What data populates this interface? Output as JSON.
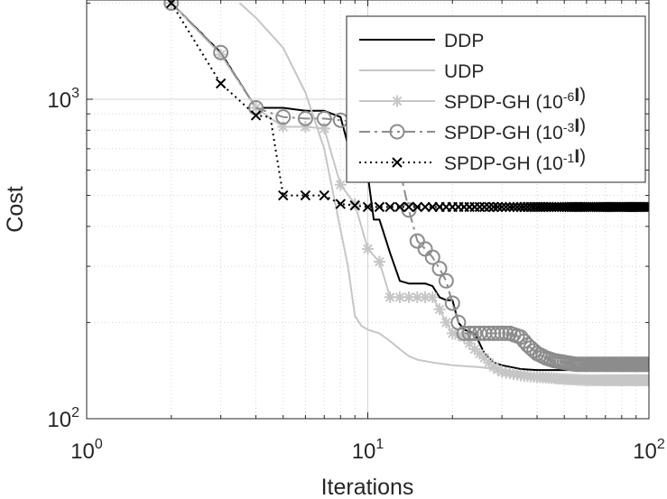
{
  "chart_data": {
    "type": "line",
    "title": "",
    "xlabel": "Iterations",
    "ylabel": "Cost",
    "xscale": "log",
    "yscale": "log",
    "xlim": [
      1,
      100
    ],
    "ylim": [
      100,
      2000
    ],
    "x_ticks": [
      {
        "value": 1,
        "base": "10",
        "exp": "0"
      },
      {
        "value": 10,
        "base": "10",
        "exp": "1"
      },
      {
        "value": 100,
        "base": "10",
        "exp": "2"
      }
    ],
    "y_ticks": [
      {
        "value": 100,
        "base": "10",
        "exp": "2"
      },
      {
        "value": 1000,
        "base": "10",
        "exp": "3"
      }
    ],
    "grid": true,
    "legend_position": "top-right",
    "series": [
      {
        "name": "DDP",
        "legend_parts": [
          {
            "t": "DDP"
          }
        ],
        "color": "#000000",
        "dash": "",
        "marker": "none",
        "points": [
          [
            2,
            2000
          ],
          [
            3,
            1400
          ],
          [
            4,
            940
          ],
          [
            5,
            940
          ],
          [
            6,
            920
          ],
          [
            7,
            920
          ],
          [
            8,
            880
          ],
          [
            8.4,
            750
          ],
          [
            8.8,
            600
          ],
          [
            9.3,
            580
          ],
          [
            10,
            580
          ],
          [
            10.5,
            420
          ],
          [
            11,
            420
          ],
          [
            12,
            330
          ],
          [
            13,
            270
          ],
          [
            14,
            265
          ],
          [
            15,
            265
          ],
          [
            16,
            265
          ],
          [
            17,
            260
          ],
          [
            18,
            240
          ],
          [
            19,
            235
          ],
          [
            20,
            235
          ],
          [
            21,
            200
          ],
          [
            22,
            190
          ],
          [
            24,
            185
          ],
          [
            26,
            160
          ],
          [
            28,
            150
          ],
          [
            30,
            147
          ],
          [
            35,
            143
          ],
          [
            40,
            142
          ],
          [
            50,
            142
          ],
          [
            60,
            142
          ],
          [
            70,
            142
          ],
          [
            80,
            142
          ],
          [
            90,
            142
          ],
          [
            100,
            142
          ]
        ]
      },
      {
        "name": "UDP",
        "legend_parts": [
          {
            "t": "UDP"
          }
        ],
        "color": "#c6c6c6",
        "dash": "",
        "marker": "none",
        "points": [
          [
            3.5,
            2000
          ],
          [
            4,
            1800
          ],
          [
            5,
            1450
          ],
          [
            6,
            1050
          ],
          [
            7,
            700
          ],
          [
            8,
            390
          ],
          [
            8.5,
            300
          ],
          [
            9,
            210
          ],
          [
            9.5,
            195
          ],
          [
            10,
            190
          ],
          [
            11,
            185
          ],
          [
            12,
            175
          ],
          [
            13,
            165
          ],
          [
            14,
            157
          ],
          [
            15,
            153
          ],
          [
            17,
            150
          ],
          [
            20,
            147
          ],
          [
            25,
            145
          ],
          [
            30,
            142
          ],
          [
            35,
            140
          ],
          [
            40,
            137
          ],
          [
            50,
            135
          ],
          [
            60,
            133
          ],
          [
            70,
            132
          ],
          [
            80,
            131
          ],
          [
            90,
            131
          ],
          [
            100,
            131
          ]
        ]
      },
      {
        "name": "SPDP-GH (10^-6 I)",
        "legend_parts": [
          {
            "t": "SPDP-GH (10"
          },
          {
            "t": "-6",
            "sup": true
          },
          {
            "t": "I",
            "bold": true
          },
          {
            "t": ")"
          }
        ],
        "color": "#c6c6c6",
        "dash": "",
        "marker": "star",
        "points": [
          [
            2,
            2000
          ],
          [
            3,
            1380
          ],
          [
            4,
            940
          ],
          [
            5,
            820
          ],
          [
            6,
            820
          ],
          [
            7,
            810
          ],
          [
            8,
            540
          ],
          [
            9,
            470
          ],
          [
            10,
            340
          ],
          [
            11,
            310
          ],
          [
            12,
            240
          ],
          [
            13,
            240
          ],
          [
            14,
            240
          ],
          [
            15,
            240
          ],
          [
            16,
            240
          ],
          [
            17,
            240
          ],
          [
            18,
            220
          ],
          [
            19,
            200
          ],
          [
            20,
            185
          ],
          [
            22,
            180
          ],
          [
            24,
            165
          ],
          [
            26,
            155
          ],
          [
            28,
            145
          ],
          [
            30,
            140
          ],
          [
            33,
            138
          ],
          [
            36,
            136
          ],
          [
            40,
            135
          ],
          [
            45,
            134
          ],
          [
            50,
            133
          ],
          [
            60,
            132
          ],
          [
            70,
            132
          ],
          [
            80,
            132
          ],
          [
            90,
            132
          ],
          [
            100,
            132
          ]
        ]
      },
      {
        "name": "SPDP-GH (10^-3 I)",
        "legend_parts": [
          {
            "t": "SPDP-GH (10"
          },
          {
            "t": "-3",
            "sup": true
          },
          {
            "t": "I",
            "bold": true
          },
          {
            "t": ")"
          }
        ],
        "color": "#8c8c8c",
        "dash": "12 5 3 5",
        "marker": "circle",
        "points": [
          [
            2,
            2000
          ],
          [
            3,
            1400
          ],
          [
            4,
            940
          ],
          [
            5,
            880
          ],
          [
            6,
            870
          ],
          [
            7,
            870
          ],
          [
            8,
            860
          ],
          [
            9,
            850
          ],
          [
            10,
            830
          ],
          [
            11,
            830
          ],
          [
            12,
            830
          ],
          [
            13,
            600
          ],
          [
            14,
            450
          ],
          [
            15,
            360
          ],
          [
            16,
            340
          ],
          [
            17,
            320
          ],
          [
            18,
            295
          ],
          [
            19,
            270
          ],
          [
            20,
            230
          ],
          [
            21,
            200
          ],
          [
            22,
            185
          ],
          [
            23,
            185
          ],
          [
            25,
            185
          ],
          [
            28,
            185
          ],
          [
            32,
            185
          ],
          [
            35,
            180
          ],
          [
            37,
            170
          ],
          [
            40,
            160
          ],
          [
            43,
            155
          ],
          [
            46,
            152
          ],
          [
            50,
            150
          ],
          [
            55,
            148
          ],
          [
            60,
            148
          ],
          [
            70,
            148
          ],
          [
            80,
            148
          ],
          [
            90,
            148
          ],
          [
            100,
            148
          ]
        ]
      },
      {
        "name": "SPDP-GH (10^-1 I)",
        "legend_parts": [
          {
            "t": "SPDP-GH (10"
          },
          {
            "t": "-1",
            "sup": true
          },
          {
            "t": "I",
            "bold": true
          },
          {
            "t": ")"
          }
        ],
        "color": "#000000",
        "dash": "2 4",
        "marker": "x",
        "points": [
          [
            2,
            2000
          ],
          [
            3,
            1120
          ],
          [
            4,
            890
          ],
          [
            4.5,
            880
          ],
          [
            5,
            500
          ],
          [
            6,
            500
          ],
          [
            7,
            500
          ],
          [
            8,
            470
          ],
          [
            9,
            465
          ],
          [
            10,
            460
          ],
          [
            11,
            460
          ],
          [
            12,
            460
          ],
          [
            15,
            460
          ],
          [
            20,
            460
          ],
          [
            30,
            460
          ],
          [
            50,
            460
          ],
          [
            100,
            460
          ]
        ]
      }
    ]
  }
}
